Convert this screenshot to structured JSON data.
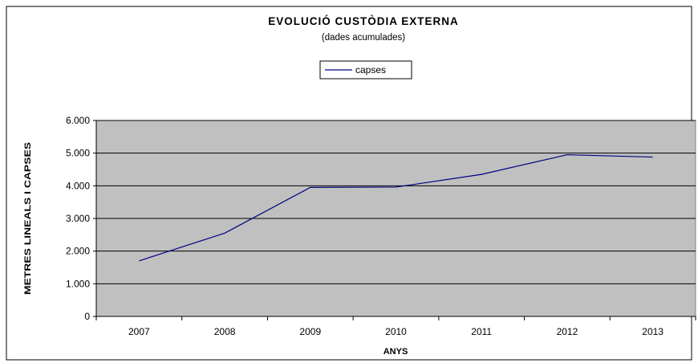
{
  "chart_data": {
    "type": "line",
    "title": "EVOLUCIÓ CUSTÒDIA EXTERNA",
    "subtitle": "(dades acumulades)",
    "xlabel": "ANYS",
    "ylabel": "METRES LINEALS I CAPSES",
    "categories": [
      "2007",
      "2008",
      "2009",
      "2010",
      "2011",
      "2012",
      "2013"
    ],
    "series": [
      {
        "name": "capses",
        "values": [
          1700,
          2550,
          3950,
          3960,
          4350,
          4950,
          4880
        ]
      }
    ],
    "ylim": [
      0,
      6000
    ],
    "yticks": [
      {
        "value": 0,
        "label": "0"
      },
      {
        "value": 1000,
        "label": "1.000"
      },
      {
        "value": 2000,
        "label": "2.000"
      },
      {
        "value": 3000,
        "label": "3.000"
      },
      {
        "value": 4000,
        "label": "4.000"
      },
      {
        "value": 5000,
        "label": "5.000"
      },
      {
        "value": 6000,
        "label": "6.000"
      }
    ],
    "grid": true,
    "legend_position": "top-center",
    "colors": {
      "series": "#000080",
      "plot_background": "#c0c0c0",
      "gridline": "#000000"
    }
  }
}
